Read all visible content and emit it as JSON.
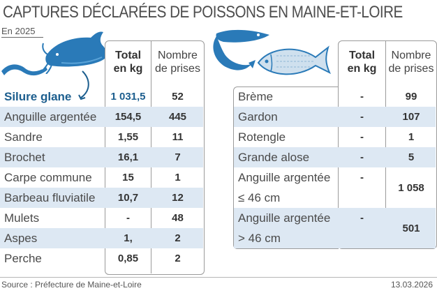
{
  "header": {
    "title": "CAPTURES DÉCLARÉES DE POISSONS EN MAINE-ET-LOIRE",
    "subtitle": "En 2025"
  },
  "columns": {
    "total_line1": "Total",
    "total_line2": "en kg",
    "count_line1": "Nombre",
    "count_line2": "de prises"
  },
  "left_table": [
    {
      "name": "Silure glane",
      "kg": "1 031,5",
      "count": "52"
    },
    {
      "name": "Anguille argentée",
      "kg": "154,5",
      "count": "445"
    },
    {
      "name": "Sandre",
      "kg": "1,55",
      "count": "11"
    },
    {
      "name": "Brochet",
      "kg": "16,1",
      "count": "7"
    },
    {
      "name": "Carpe commune",
      "kg": "15",
      "count": "1"
    },
    {
      "name": "Barbeau fluviatile",
      "kg": "10,7",
      "count": "12"
    },
    {
      "name": "Mulets",
      "kg": "-",
      "count": "48"
    },
    {
      "name": "Aspes",
      "kg": "1,",
      "count": "2"
    },
    {
      "name": "Perche",
      "kg": "0,85",
      "count": "2"
    }
  ],
  "right_table": [
    {
      "name": "Brème",
      "kg": "-",
      "count": "99"
    },
    {
      "name": "Gardon",
      "kg": "-",
      "count": "107"
    },
    {
      "name": "Rotengle",
      "kg": "-",
      "count": "1"
    },
    {
      "name": "Grande alose",
      "kg": "-",
      "count": "5"
    },
    {
      "name_line1": "Anguille argentée",
      "name_line2": "≤ 46 cm",
      "kg": "-",
      "count": "1 058"
    },
    {
      "name_line1": "Anguille argentée",
      "name_line2": "> 46 cm",
      "kg": "-",
      "count": "501"
    }
  ],
  "footer": {
    "source": "Source : Préfecture de Maine-et-Loire",
    "date": "13.03.2026"
  },
  "colors": {
    "accent": "#1c5e8e",
    "row_shade": "#dde8f3",
    "fish_blue": "#2a7ab8"
  }
}
